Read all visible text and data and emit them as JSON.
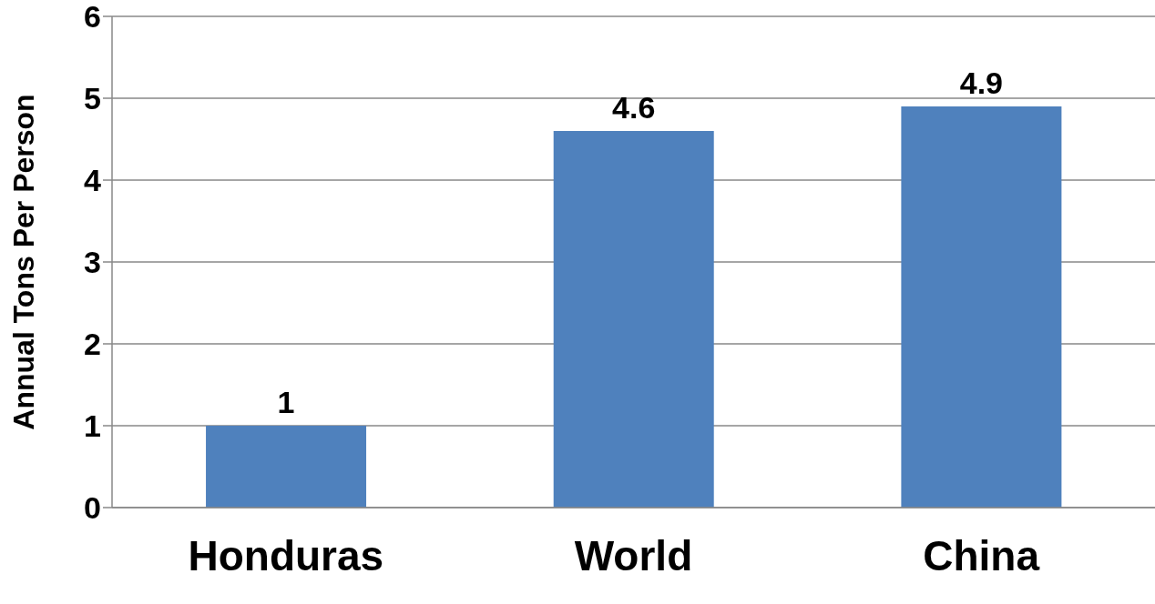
{
  "chart_data": {
    "type": "bar",
    "ylabel": "Annual Tons Per Person",
    "categories": [
      "Honduras",
      "World",
      "China"
    ],
    "values": [
      1,
      4.6,
      4.9
    ],
    "color": "#4f81bd",
    "ylim": [
      0,
      6
    ],
    "yticks": [
      0,
      1,
      2,
      3,
      4,
      5,
      6
    ],
    "grid": "y",
    "data_labels": true
  }
}
